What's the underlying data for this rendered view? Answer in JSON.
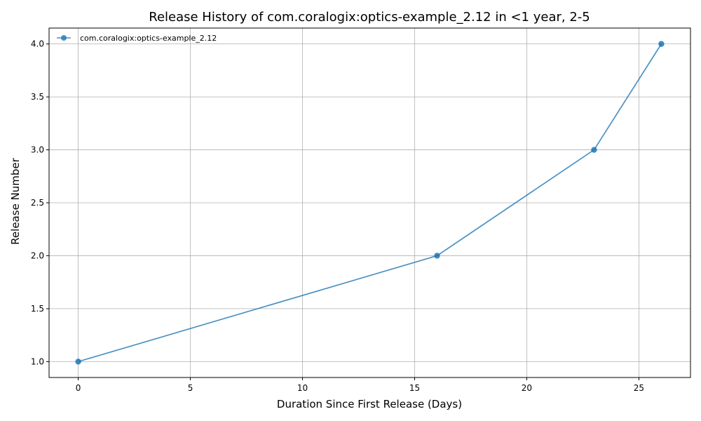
{
  "chart_data": {
    "type": "line",
    "title": "Release History of com.coralogix:optics-example_2.12 in <1 year, 2-5",
    "xlabel": "Duration Since First Release (Days)",
    "ylabel": "Release Number",
    "xlim": [
      -1.3,
      27.3
    ],
    "ylim": [
      0.85,
      4.15
    ],
    "xticks": [
      0,
      5,
      10,
      15,
      20,
      25
    ],
    "xtick_labels": [
      "0",
      "5",
      "10",
      "15",
      "20",
      "25"
    ],
    "yticks": [
      1.0,
      1.5,
      2.0,
      2.5,
      3.0,
      3.5,
      4.0
    ],
    "ytick_labels": [
      "1.0",
      "1.5",
      "2.0",
      "2.5",
      "3.0",
      "3.5",
      "4.0"
    ],
    "grid": true,
    "legend_position": "top-left",
    "series": [
      {
        "name": "com.coralogix:optics-example_2.12",
        "color": "#1f77b4",
        "marker": "circle",
        "x": [
          0,
          16,
          23,
          26
        ],
        "y": [
          1,
          2,
          3,
          4
        ]
      }
    ]
  }
}
